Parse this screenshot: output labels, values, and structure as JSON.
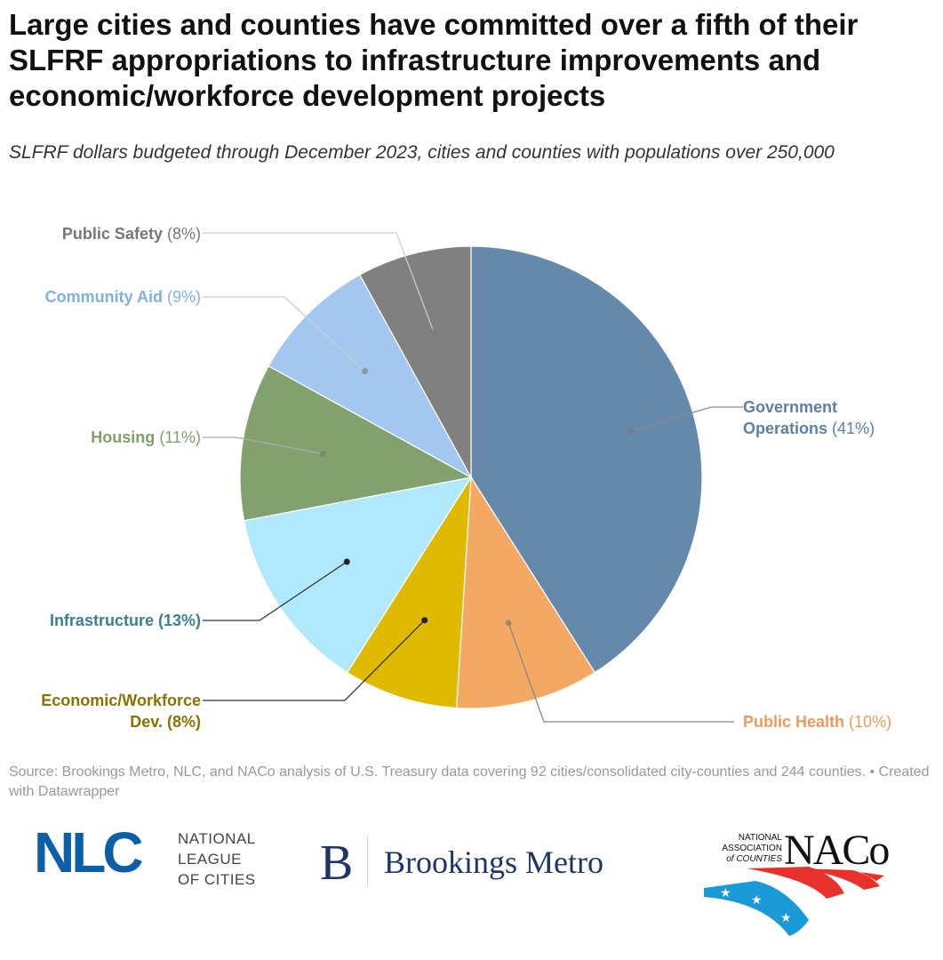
{
  "title": "Large cities and counties have committed over a fifth of their SLFRF appropriations to infrastructure improvements and economic/workforce development projects",
  "subtitle": "SLFRF dollars budgeted through December 2023, cities and counties with populations over 250,000",
  "source": "Source: Brookings Metro, NLC, and NACo analysis of U.S. Treasury data covering 92 cities/consolidated city-counties and 244 counties.",
  "credit": "• Created with Datawrapper",
  "chart_data": {
    "type": "pie",
    "start": "top, clockwise",
    "slices": [
      {
        "name": "Government Operations",
        "pct_label": "(41%)",
        "value": 41,
        "color": "#6589ab",
        "label_color": "#5b80a6"
      },
      {
        "name": "Public Health",
        "pct_label": "(10%)",
        "value": 10,
        "color": "#f5a864",
        "label_color": "#eb9a5c"
      },
      {
        "name": "Economic/Workforce Dev.",
        "pct_label": "(8%)",
        "value": 8,
        "color": "#dfba00",
        "label_color": "#8a7200"
      },
      {
        "name": "Infrastructure",
        "pct_label": "(13%)",
        "value": 13,
        "color": "#b0e9fd",
        "label_color": "#3b7f93"
      },
      {
        "name": "Housing",
        "pct_label": "(11%)",
        "value": 11,
        "color": "#83a16e",
        "label_color": "#80a06a"
      },
      {
        "name": "Community Aid",
        "pct_label": "(9%)",
        "value": 9,
        "color": "#a3c7ee",
        "label_color": "#7db1e1"
      },
      {
        "name": "Public Safety",
        "pct_label": "(8%)",
        "value": 8,
        "color": "#808080",
        "label_color": "#777777"
      }
    ]
  },
  "logos": {
    "nlc": {
      "mark": "NLC",
      "text": [
        "NATIONAL",
        "LEAGUE",
        "OF CITIES"
      ],
      "color": "#0b5fa8"
    },
    "brookings": {
      "mark": "B",
      "text": "Brookings Metro",
      "color": "#1f3566"
    },
    "naco": {
      "mark": "NACo",
      "text": [
        "NATIONAL",
        "ASSOCIATION",
        "of COUNTIES"
      ]
    }
  }
}
